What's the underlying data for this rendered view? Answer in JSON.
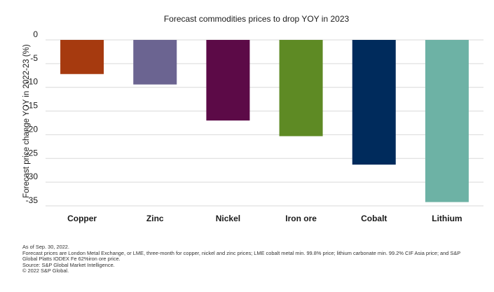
{
  "chart_data": {
    "type": "bar",
    "title": "Forecast commodities prices to drop YOY in 2023",
    "xlabel": "",
    "ylabel": "Forecast price change YOY in 2022-23 (%)",
    "categories": [
      "Copper",
      "Zinc",
      "Nickel",
      "Iron ore",
      "Cobalt",
      "Lithium"
    ],
    "values": [
      -7.2,
      -9.4,
      -17.0,
      -20.3,
      -26.3,
      -34.2
    ],
    "colors": [
      "#a63a0f",
      "#6b6491",
      "#5c0a47",
      "#5e8a24",
      "#002b5c",
      "#6db2a5"
    ],
    "ylim": [
      -35,
      0
    ],
    "yticks": [
      0,
      -5,
      -10,
      -15,
      -20,
      -25,
      -30,
      -35
    ],
    "grid": true,
    "legend": "none"
  },
  "notes": {
    "as_of": "As of Sep. 30, 2022.",
    "line1": "Forecast prices are London Metal Exchange, or LME, three-month for copper, nickel and zinc prices; LME cobalt metal min. 99.8% price; lithium carbonate min. 99.2% CIF Asia price; and S&P",
    "line2": "Global Platts IODEX Fe 62%iron ore price.",
    "source": "Source: S&P Global Market Intelligence.",
    "copyright": "© 2022 S&P Global."
  }
}
